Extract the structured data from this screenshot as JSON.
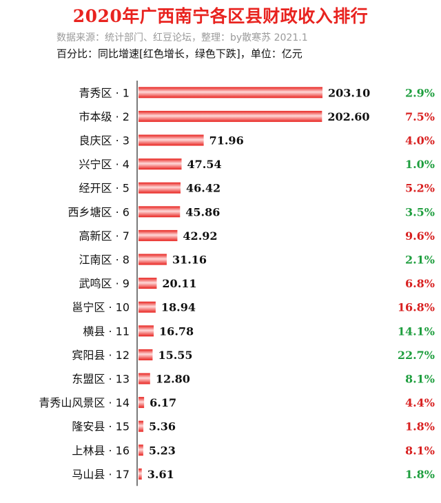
{
  "header": {
    "title": "2020年广西南宁各区县财政收入排行",
    "source": "数据来源：统计部门、红豆论坛，整理：by散寒苏 2021.1",
    "note": "百分比：同比增速[红色增长，绿色下跌]，单位：亿元"
  },
  "colors": {
    "bar": "#e8231f",
    "bar_highlight": "#ffd9d9",
    "axis": "#222222",
    "growth_up": "#d82020",
    "growth_down": "#1e9e3e",
    "title": "#e8231f"
  },
  "chart_data": {
    "type": "bar",
    "orientation": "horizontal",
    "title": "2020年广西南宁各区县财政收入排行",
    "unit": "亿元",
    "categories": [
      "青秀区 · 1",
      "市本级 · 2",
      "良庆区 · 3",
      "兴宁区 · 4",
      "经开区 · 5",
      "西乡塘区 · 6",
      "高新区 · 7",
      "江南区 · 8",
      "武鸣区 · 9",
      "邕宁区 · 10",
      "横县 · 11",
      "宾阳县 · 12",
      "东盟区 · 13",
      "青秀山风景区 · 14",
      "隆安县 · 15",
      "上林县 · 16",
      "马山县 · 17"
    ],
    "values": [
      203.1,
      202.6,
      71.96,
      47.54,
      46.42,
      45.86,
      42.92,
      31.16,
      20.11,
      18.94,
      16.78,
      15.55,
      12.8,
      6.17,
      5.36,
      5.23,
      3.61
    ],
    "value_labels": [
      "203.10",
      "202.60",
      "71.96",
      "47.54",
      "46.42",
      "45.86",
      "42.92",
      "31.16",
      "20.11",
      "18.94",
      "16.78",
      "15.55",
      "12.80",
      "6.17",
      "5.36",
      "5.23",
      "3.61"
    ],
    "growth_labels": [
      "2.9%",
      "7.5%",
      "4.0%",
      "1.0%",
      "5.2%",
      "3.5%",
      "9.6%",
      "2.1%",
      "6.8%",
      "16.8%",
      "14.1%",
      "22.7%",
      "8.1%",
      "4.4%",
      "1.8%",
      "8.1%",
      "1.8%"
    ],
    "growth_direction": [
      "down",
      "up",
      "up",
      "down",
      "up",
      "down",
      "up",
      "down",
      "up",
      "up",
      "down",
      "down",
      "down",
      "up",
      "up",
      "up",
      "down"
    ],
    "xlim": [
      0,
      203.1
    ],
    "grid": false,
    "legend": "none"
  }
}
